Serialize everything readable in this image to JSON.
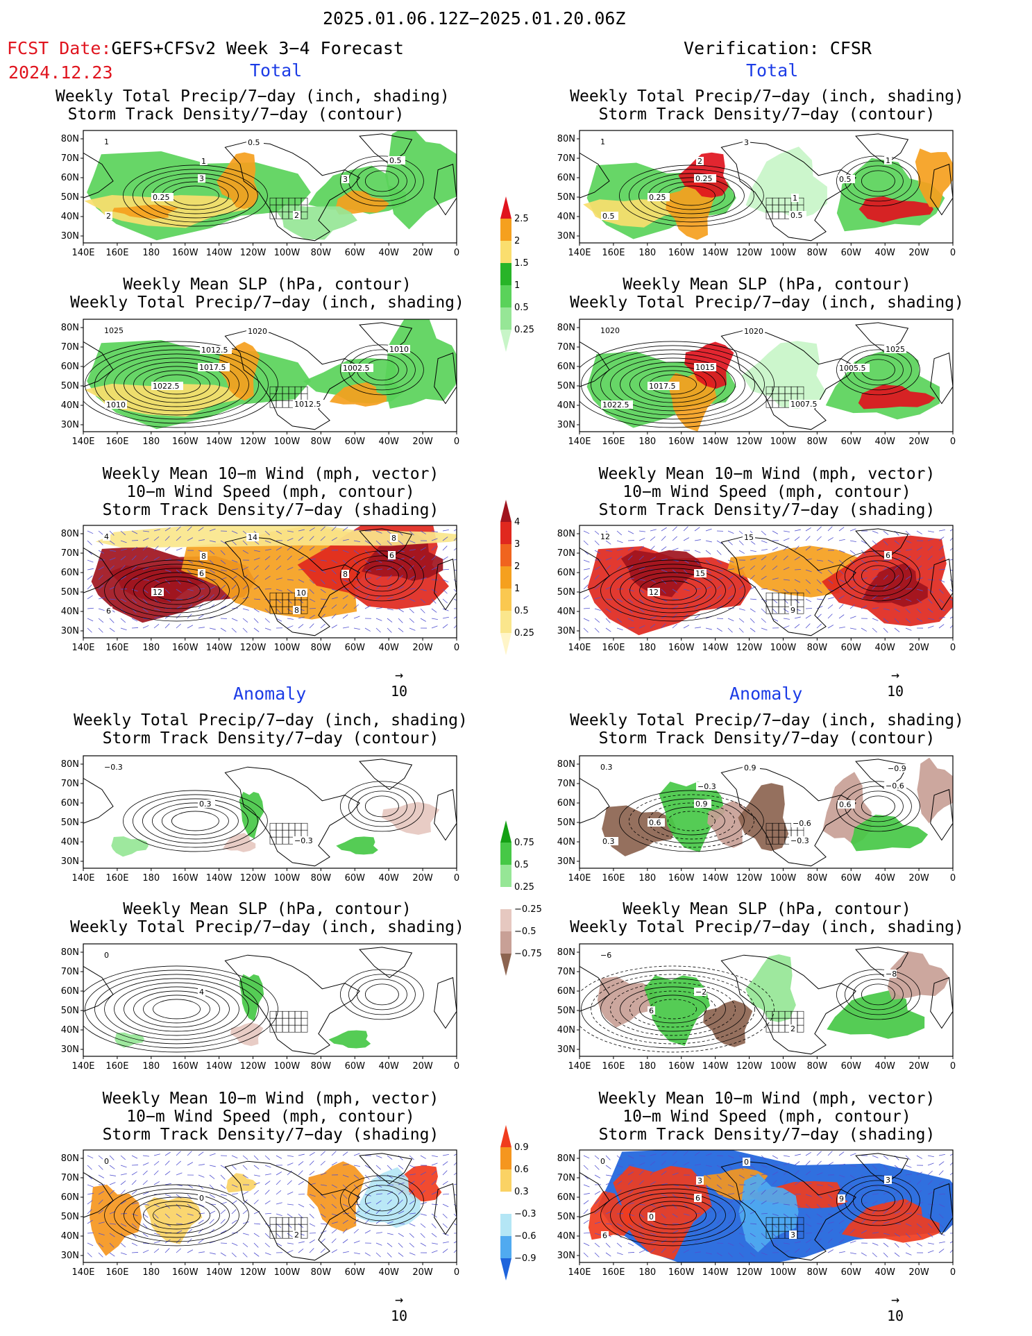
{
  "header": {
    "date_range": "2025.01.06.12Z−2025.01.20.06Z",
    "fcst_label": "FCST Date:",
    "fcst_product": "GEFS+CFSv2 Week 3−4 Forecast",
    "fcst_date": "2024.12.23",
    "verification": "Verification: CFSR"
  },
  "sections": {
    "total": "Total",
    "anomaly": "Anomaly"
  },
  "axis": {
    "lon_labels": [
      "140E",
      "160E",
      "180",
      "160W",
      "140W",
      "120W",
      "100W",
      "80W",
      "60W",
      "40W",
      "20W",
      "0"
    ],
    "lat_labels": [
      "80N",
      "70N",
      "60N",
      "50N",
      "40N",
      "30N"
    ]
  },
  "panel_titles": {
    "precip_track": [
      "Weekly Total Precip/7−day (inch, shading)",
      "Storm Track Density/7−day (contour)"
    ],
    "slp_precip": [
      "Weekly Mean SLP (hPa, contour)",
      "Weekly Total Precip/7−day (inch, shading)"
    ],
    "wind_track": [
      "Weekly Mean 10−m Wind (mph, vector)",
      "10−m Wind Speed (mph, contour)",
      "Storm Track Density/7−day (shading)"
    ]
  },
  "vector_ref": "10",
  "colorbars": {
    "precip_total": {
      "labels": [
        "2.5",
        "2",
        "1.5",
        "1",
        "0.5",
        "0.25"
      ],
      "colors": [
        "#e0141e",
        "#f5a01e",
        "#fade6e",
        "#28b428",
        "#5ad25a",
        "#96e696",
        "#c8f5c8"
      ]
    },
    "track_total": {
      "labels": [
        "4",
        "3",
        "2",
        "1",
        "0.5",
        "0.25"
      ],
      "colors": [
        "#a0141e",
        "#e0281e",
        "#f0641e",
        "#f5a01e",
        "#fac850",
        "#fae68c",
        "#fff5c8"
      ]
    },
    "precip_anom": {
      "labels": [
        "0.75",
        "0.5",
        "0.25",
        "−0.25",
        "−0.5",
        "−0.75"
      ],
      "colors": [
        "#14a014",
        "#46c846",
        "#96e696",
        "#ffffff",
        "#e6c8c0",
        "#c8a096",
        "#8c6450"
      ]
    },
    "track_anom": {
      "labels": [
        "0.9",
        "0.6",
        "0.3",
        "−0.3",
        "−0.6",
        "−0.9"
      ],
      "colors": [
        "#f03c1e",
        "#f5961e",
        "#fad264",
        "#ffffff",
        "#b4e6f5",
        "#50aaf0",
        "#1e64dc"
      ]
    }
  },
  "panel_labels": {
    "f1": [
      "1",
      "3",
      "2",
      "0.5",
      "0.25",
      "0.5",
      "3",
      "2",
      "1"
    ],
    "v1": [
      "1",
      "0.25",
      "0.5",
      "1",
      "0.25",
      "3",
      "0.5",
      "0.5",
      "2",
      "1"
    ],
    "f2": [
      "1025",
      "1017.5",
      "1012.5",
      "1010",
      "1022.5",
      "1020",
      "1002.5",
      "1010",
      "1012.5"
    ],
    "v2": [
      "1020",
      "1015",
      "1007.5",
      "1025",
      "1017.5",
      "1020",
      "1005.5",
      "1022.5"
    ],
    "f3": [
      "4",
      "6",
      "8",
      "6",
      "12",
      "14",
      "8",
      "6",
      "8",
      "10",
      "8"
    ],
    "v3": [
      "12",
      "15",
      "9",
      "6",
      "12",
      "15"
    ],
    "f4": [
      "−0.3",
      "0.3",
      "−0.3"
    ],
    "v4": [
      "0.3",
      "0.9",
      "−0.3",
      "−0.6",
      "0.6",
      "0.9",
      "0.6",
      "0.3",
      "−0.3",
      "−0.6",
      "−0.9"
    ],
    "f5": [
      "0",
      "4"
    ],
    "v5": [
      "−6",
      "−2",
      "2",
      "−8",
      "6"
    ],
    "f6": [
      "0",
      "0",
      "2"
    ],
    "v6": [
      "0",
      "6",
      "3",
      "3",
      "0",
      "0",
      "9",
      "6",
      "3"
    ]
  }
}
